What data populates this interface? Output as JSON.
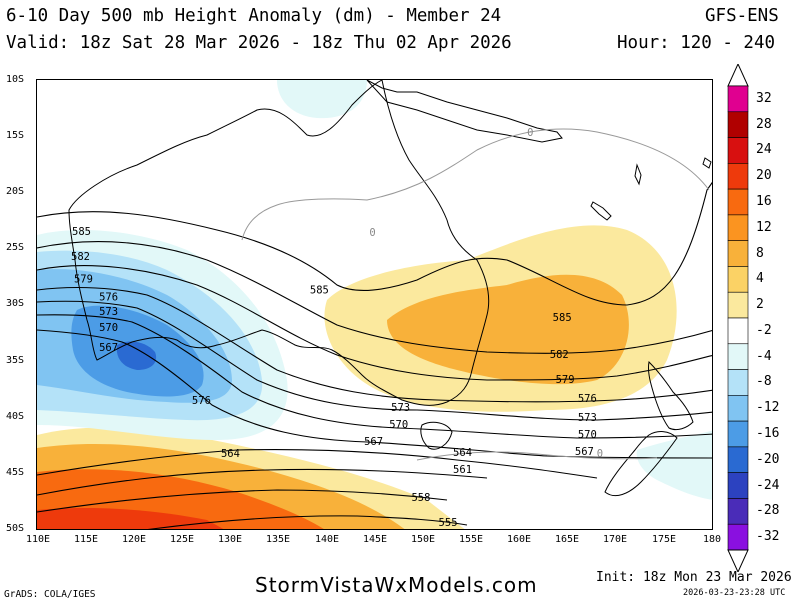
{
  "header": {
    "title": "6-10 Day 500 mb Height Anomaly (dm) - Member 24",
    "model": "GFS-ENS",
    "valid": "Valid: 18z Sat 28 Mar 2026 - 18z Thu 02 Apr 2026",
    "hour": "Hour: 120 - 240"
  },
  "map": {
    "lat_labels": [
      "10S",
      "15S",
      "20S",
      "25S",
      "30S",
      "35S",
      "40S",
      "45S",
      "50S"
    ],
    "lon_labels": [
      "110E",
      "115E",
      "120E",
      "125E",
      "130E",
      "135E",
      "140E",
      "145E",
      "150E",
      "155E",
      "160E",
      "165E",
      "170E",
      "175E",
      "180"
    ],
    "extent": {
      "lon_min": 110,
      "lon_max": 180,
      "lat_min": -50,
      "lat_max": -10
    },
    "contour_labels": [
      {
        "text": "585",
        "lon": 114.6,
        "lat": -23.4
      },
      {
        "text": "582",
        "lon": 114.5,
        "lat": -25.6
      },
      {
        "text": "579",
        "lon": 114.8,
        "lat": -27.6
      },
      {
        "text": "576",
        "lon": 117.4,
        "lat": -29.2
      },
      {
        "text": "573",
        "lon": 117.4,
        "lat": -30.5
      },
      {
        "text": "570",
        "lon": 117.4,
        "lat": -31.9
      },
      {
        "text": "567",
        "lon": 117.4,
        "lat": -33.7
      },
      {
        "text": "585",
        "lon": 139.2,
        "lat": -28.6
      },
      {
        "text": "585",
        "lon": 164.3,
        "lat": -31.0
      },
      {
        "text": "582",
        "lon": 164.0,
        "lat": -34.3
      },
      {
        "text": "579",
        "lon": 164.6,
        "lat": -36.5
      },
      {
        "text": "576",
        "lon": 127.0,
        "lat": -38.4
      },
      {
        "text": "573",
        "lon": 147.6,
        "lat": -39.0
      },
      {
        "text": "570",
        "lon": 147.4,
        "lat": -40.5
      },
      {
        "text": "567",
        "lon": 144.8,
        "lat": -42.0
      },
      {
        "text": "564",
        "lon": 130.0,
        "lat": -43.1
      },
      {
        "text": "564",
        "lon": 154.0,
        "lat": -43.0
      },
      {
        "text": "561",
        "lon": 154.0,
        "lat": -44.5
      },
      {
        "text": "558",
        "lon": 149.7,
        "lat": -47.0
      },
      {
        "text": "555",
        "lon": 152.5,
        "lat": -49.2
      },
      {
        "text": "576",
        "lon": 166.9,
        "lat": -38.2
      },
      {
        "text": "573",
        "lon": 166.9,
        "lat": -39.9
      },
      {
        "text": "570",
        "lon": 166.9,
        "lat": -41.4
      },
      {
        "text": "567",
        "lon": 166.6,
        "lat": -42.9
      },
      {
        "text": "0",
        "lon": 161.0,
        "lat": -14.6
      },
      {
        "text": "0",
        "lon": 144.7,
        "lat": -23.5
      },
      {
        "text": "0",
        "lon": 168.2,
        "lat": -43.1
      }
    ]
  },
  "colorbar": {
    "labels": [
      "32",
      "28",
      "24",
      "20",
      "16",
      "12",
      "8",
      "4",
      "2",
      "-2",
      "-4",
      "-8",
      "-12",
      "-16",
      "-20",
      "-24",
      "-28",
      "-32"
    ],
    "colors": [
      "#e00090",
      "#b00000",
      "#d81010",
      "#ee3a0c",
      "#f86a10",
      "#fb9420",
      "#f8b13a",
      "#fbd265",
      "#fbe99e",
      "#ffffff",
      "#e2f8f8",
      "#b4e2f8",
      "#80c4f2",
      "#4c9ce6",
      "#2a6ad2",
      "#2c42c0",
      "#4a2cb8",
      "#8a10e0"
    ]
  },
  "footer": {
    "grads": "GrADS: COLA/IGES",
    "site": "StormVistaWxModels.com",
    "init": "Init: 18z Mon 23 Mar 2026",
    "timestamp": "2026-03-23-23:28 UTC"
  },
  "legend_colors": {
    "positive": "#f8b13a",
    "negative": "#4c9ce6",
    "land_outline": "#000000",
    "zero_contour": "#999999"
  }
}
